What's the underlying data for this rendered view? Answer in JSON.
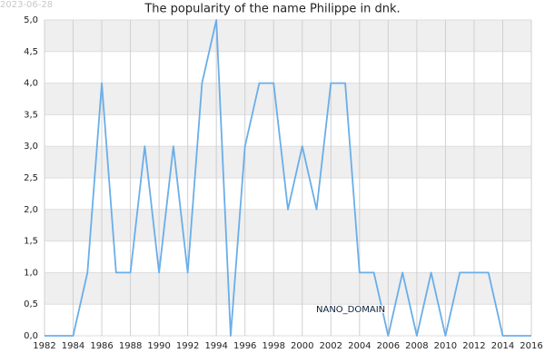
{
  "chart_data": {
    "type": "line",
    "title": "The popularity of the name Philippe in dnk.",
    "date_stamp": "2023-06-28",
    "annotation": "NANO_DOMAIN",
    "x": [
      1982,
      1983,
      1984,
      1985,
      1986,
      1987,
      1988,
      1989,
      1990,
      1991,
      1992,
      1993,
      1994,
      1995,
      1996,
      1997,
      1998,
      1999,
      2000,
      2001,
      2002,
      2003,
      2004,
      2005,
      2006,
      2007,
      2008,
      2009,
      2010,
      2011,
      2012,
      2013,
      2014,
      2015,
      2016
    ],
    "values": [
      0,
      0,
      0,
      1,
      4,
      1,
      1,
      3,
      1,
      3,
      1,
      4,
      5,
      0,
      3,
      4,
      4,
      2,
      3,
      2,
      4,
      4,
      1,
      1,
      0,
      1,
      0,
      1,
      0,
      1,
      1,
      1,
      0,
      0,
      0
    ],
    "color": "#6aaee8",
    "xlim": [
      1982,
      2016
    ],
    "xticks": [
      1982,
      1984,
      1986,
      1988,
      1990,
      1992,
      1994,
      1996,
      1998,
      2000,
      2002,
      2004,
      2006,
      2008,
      2010,
      2012,
      2014,
      2016
    ],
    "ylim": [
      0,
      5
    ],
    "yticks": [
      {
        "value": 0,
        "label": "0,0"
      },
      {
        "value": 0.5,
        "label": "0,5"
      },
      {
        "value": 1,
        "label": "1,0"
      },
      {
        "value": 1.5,
        "label": "1,5"
      },
      {
        "value": 2,
        "label": "2,0"
      },
      {
        "value": 2.5,
        "label": "2,5"
      },
      {
        "value": 3,
        "label": "3,0"
      },
      {
        "value": 3.5,
        "label": "3,5"
      },
      {
        "value": 4,
        "label": "4,0"
      },
      {
        "value": 4.5,
        "label": "4,5"
      },
      {
        "value": 5,
        "label": "5,0"
      }
    ],
    "grid": true
  }
}
